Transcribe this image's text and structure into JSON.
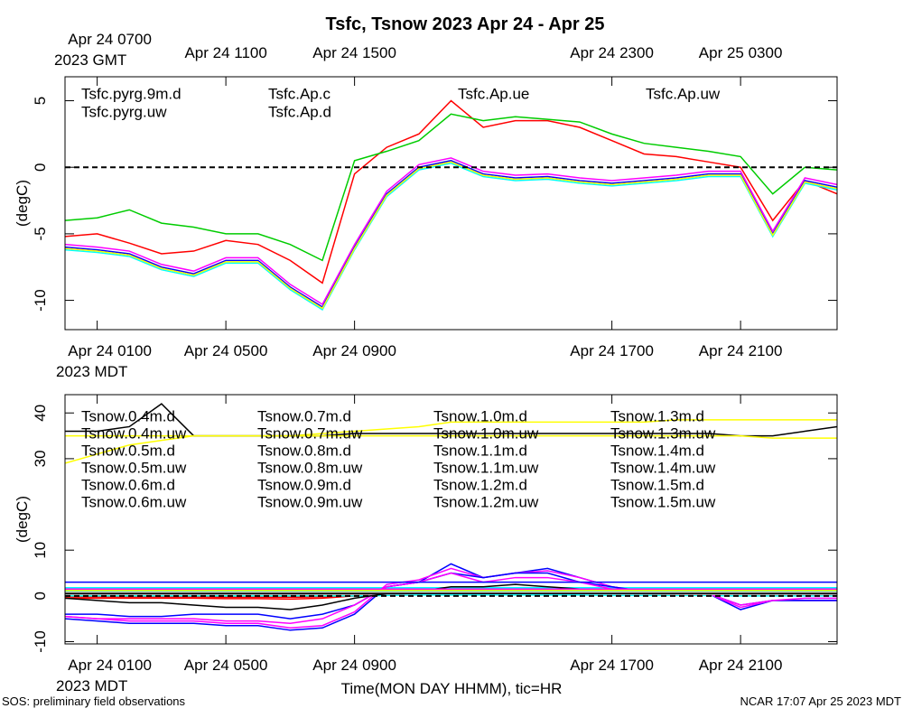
{
  "chart_data": [
    {
      "type": "line",
      "title": "Tsfc, Tsnow 2023 Apr 24 - Apr 25",
      "ylabel": "(degC)",
      "x_note": "2023 MDT",
      "x2_note": "2023 GMT",
      "x": [
        0,
        1,
        2,
        3,
        4,
        5,
        6,
        7,
        8,
        9,
        10,
        11,
        12,
        13,
        14,
        15,
        16,
        17,
        18,
        19,
        20,
        21,
        22,
        23,
        24
      ],
      "xlim": [
        0,
        24
      ],
      "xticks": [
        {
          "value": 1,
          "label": "Apr 24 0100"
        },
        {
          "value": 5,
          "label": "Apr 24 0500"
        },
        {
          "value": 9,
          "label": "Apr 24 0900"
        },
        {
          "value": 17,
          "label": "Apr 24 1700"
        },
        {
          "value": 21,
          "label": "Apr 24 2100"
        }
      ],
      "x2ticks": [
        {
          "value": 1,
          "label": "Apr 24 0700"
        },
        {
          "value": 5,
          "label": "Apr 24 1100"
        },
        {
          "value": 9,
          "label": "Apr 24 1500"
        },
        {
          "value": 17,
          "label": "Apr 24 2300"
        },
        {
          "value": 21,
          "label": "Apr 25 0300"
        }
      ],
      "ylim": [
        -12.2,
        6.8
      ],
      "yticks": [
        -10,
        -5,
        0,
        5
      ],
      "hline": 0,
      "series": [
        {
          "name": "Tsfc.pyrg.9m.d",
          "color": "#ff0000",
          "values": [
            -5.2,
            -5,
            -5.7,
            -6.5,
            -6.3,
            -5.5,
            -5.8,
            -7,
            -8.7,
            -0.5,
            1.5,
            2.5,
            5,
            3,
            3.5,
            3.5,
            3,
            2,
            1,
            0.8,
            0.4,
            0,
            -4,
            -1,
            -2
          ]
        },
        {
          "name": "Tsfc.pyrg.uw",
          "color": "#00cc00",
          "values": [
            -4,
            -3.8,
            -3.2,
            -4.2,
            -4.5,
            -5,
            -5,
            -5.8,
            -7,
            0.5,
            1.2,
            2,
            4,
            3.5,
            3.8,
            3.6,
            3.4,
            2.5,
            1.8,
            1.5,
            1.2,
            0.8,
            -2,
            0,
            -0.2
          ]
        },
        {
          "name": "Tsfc.Ap.c",
          "color": "#0000ff",
          "values": [
            -6,
            -6.2,
            -6.5,
            -7.5,
            -8,
            -7,
            -7,
            -9,
            -10.5,
            -6,
            -2,
            0,
            0.5,
            -0.5,
            -0.8,
            -0.7,
            -1,
            -1.2,
            -1,
            -0.8,
            -0.5,
            -0.5,
            -5,
            -1,
            -1.5
          ]
        },
        {
          "name": "Tsfc.Ap.d",
          "color": "#00ffff",
          "values": [
            -6.2,
            -6.4,
            -6.7,
            -7.7,
            -8.2,
            -7.2,
            -7.2,
            -9.2,
            -10.7,
            -6.2,
            -2.2,
            -0.2,
            0.3,
            -0.7,
            -1,
            -0.9,
            -1.2,
            -1.4,
            -1.2,
            -1,
            -0.7,
            -0.7,
            -5.2,
            -1.2,
            -1.7
          ]
        },
        {
          "name": "Tsfc.Ap.ue",
          "color": "#ff00ff",
          "values": [
            -5.8,
            -6,
            -6.3,
            -7.3,
            -7.8,
            -6.8,
            -6.8,
            -8.8,
            -10.3,
            -5.8,
            -1.8,
            0.2,
            0.7,
            -0.3,
            -0.6,
            -0.5,
            -0.8,
            -1,
            -0.8,
            -0.6,
            -0.3,
            -0.3,
            -4.8,
            -0.8,
            -1.3
          ]
        },
        {
          "name": "Tsfc.Ap.uw",
          "color": "#ffff00",
          "values": [
            -6.1,
            -6.3,
            -6.6,
            -7.6,
            -8.1,
            -7.1,
            -7.1,
            -9.1,
            -10.6,
            -6.1,
            -2.1,
            -0.1,
            0.4,
            -0.6,
            -0.9,
            -0.8,
            -1.1,
            -1.3,
            -1.1,
            -0.9,
            -0.6,
            -0.6,
            -5.1,
            -1.1,
            -1.6
          ]
        }
      ]
    },
    {
      "type": "line",
      "ylabel": "(degC)",
      "x_note": "2023 MDT",
      "xlabel": "Time(MON DAY HHMM), tic=HR",
      "x": [
        0,
        1,
        2,
        3,
        4,
        5,
        6,
        7,
        8,
        9,
        10,
        11,
        12,
        13,
        14,
        15,
        16,
        17,
        18,
        19,
        20,
        21,
        22,
        23,
        24
      ],
      "xlim": [
        0,
        24
      ],
      "xticks": [
        {
          "value": 1,
          "label": "Apr 24 0100"
        },
        {
          "value": 5,
          "label": "Apr 24 0500"
        },
        {
          "value": 9,
          "label": "Apr 24 0900"
        },
        {
          "value": 17,
          "label": "Apr 24 1700"
        },
        {
          "value": 21,
          "label": "Apr 24 2100"
        }
      ],
      "ylim": [
        -10.5,
        44
      ],
      "yticks": [
        -10,
        0,
        10,
        30,
        40
      ],
      "hline": 0,
      "series": [
        {
          "name": "Tsnow.0.4m.d",
          "color": "#ff0000",
          "values": [
            -0.5,
            -0.5,
            -0.5,
            -0.5,
            -0.5,
            -0.6,
            -0.6,
            -0.7,
            -0.5,
            0,
            0.5,
            1,
            1,
            1.5,
            1.5,
            1.2,
            1,
            0.8,
            0.6,
            0.5,
            0.5,
            0.3,
            0.2,
            0.2,
            0.2
          ]
        },
        {
          "name": "Tsnow.0.4m.uw",
          "color": "#00cc00",
          "values": [
            0,
            0,
            0,
            0,
            0,
            0,
            0,
            0,
            0,
            0.2,
            0.4,
            0.6,
            0.8,
            0.8,
            0.8,
            0.7,
            0.6,
            0.5,
            0.4,
            0.3,
            0.3,
            0.2,
            0.2,
            0.2,
            0.2
          ]
        },
        {
          "name": "Tsnow.0.5m.d",
          "color": "#0000ff",
          "values": [
            -5,
            -5.5,
            -6,
            -6,
            -6,
            -6.5,
            -6.5,
            -7.5,
            -7,
            -4,
            2,
            3,
            7,
            4,
            5,
            6,
            4,
            2,
            1,
            0.5,
            0.5,
            -3,
            -1,
            -1,
            -1
          ]
        },
        {
          "name": "Tsnow.0.5m.uw",
          "color": "#00ffff",
          "values": [
            1.8,
            1.8,
            1.8,
            1.8,
            1.8,
            1.8,
            1.8,
            1.8,
            1.8,
            1.8,
            1.8,
            1.8,
            1.8,
            1.8,
            1.8,
            1.8,
            1.8,
            1.8,
            1.8,
            1.8,
            1.8,
            1.8,
            1.8,
            1.8,
            1.8
          ]
        },
        {
          "name": "Tsnow.0.6m.d",
          "color": "#ff00ff",
          "values": [
            -4.5,
            -5,
            -5.5,
            -5.5,
            -5.5,
            -6,
            -6,
            -7,
            -6.5,
            -3.5,
            2.5,
            3.5,
            6,
            4,
            5,
            5.5,
            4,
            2,
            1,
            0.5,
            0.5,
            -2.5,
            -1,
            -1,
            -1
          ]
        },
        {
          "name": "Tsnow.0.6m.uw",
          "color": "#ffff00",
          "values": [
            29,
            31,
            33,
            34,
            35,
            35,
            35,
            35,
            35.5,
            36,
            36.5,
            37,
            38,
            38,
            38,
            38,
            38,
            38,
            38,
            38.5,
            38.5,
            38.5,
            38.5,
            38.5,
            38.5
          ]
        },
        {
          "name": "Tsnow.0.7m.d",
          "color": "#c0c0c0",
          "values": [
            0.5,
            0.5,
            0.5,
            0.5,
            0.5,
            0.5,
            0.5,
            0.5,
            0.5,
            0.5,
            0.6,
            0.7,
            0.8,
            0.8,
            0.8,
            0.7,
            0.6,
            0.6,
            0.5,
            0.5,
            0.5,
            0.5,
            0.5,
            0.5,
            0.5
          ]
        },
        {
          "name": "Tsnow.0.7m.uw",
          "color": "#000000",
          "values": [
            36,
            36,
            37,
            42,
            35,
            35,
            35,
            35,
            35,
            35.5,
            35.5,
            35.5,
            35.5,
            35.5,
            35.5,
            35.5,
            35.5,
            35.5,
            35.5,
            35.5,
            35.5,
            35,
            35,
            36,
            37
          ]
        },
        {
          "name": "Tsnow.0.8m.d",
          "color": "#ff0000",
          "values": [
            -0.2,
            -0.2,
            -0.2,
            -0.2,
            -0.2,
            -0.3,
            -0.3,
            -0.3,
            -0.2,
            0,
            0.3,
            0.6,
            0.8,
            1,
            1,
            0.9,
            0.8,
            0.6,
            0.5,
            0.4,
            0.4,
            0.3,
            0.2,
            0.2,
            0.2
          ]
        },
        {
          "name": "Tsnow.0.8m.uw",
          "color": "#00cc00",
          "values": [
            0.5,
            0.5,
            0.5,
            0.5,
            0.5,
            0.5,
            0.5,
            0.5,
            0.5,
            0.5,
            0.6,
            0.7,
            0.8,
            0.8,
            0.8,
            0.7,
            0.7,
            0.6,
            0.6,
            0.5,
            0.5,
            0.5,
            0.5,
            0.5,
            0.5
          ]
        },
        {
          "name": "Tsnow.0.9m.d",
          "color": "#0000ff",
          "values": [
            -4,
            -4,
            -4.5,
            -4.5,
            -4,
            -4,
            -4,
            -5,
            -4,
            -2,
            2,
            3,
            5,
            4,
            5,
            5,
            3,
            2,
            1,
            0.5,
            0.5,
            -2,
            -1,
            -1,
            -1
          ]
        },
        {
          "name": "Tsnow.0.9m.uw",
          "color": "#00ffff",
          "values": [
            0,
            0,
            0,
            0,
            0,
            0,
            0,
            0,
            0,
            0,
            0.1,
            0.2,
            0.2,
            0.2,
            0.2,
            0.2,
            0.2,
            0.1,
            0.1,
            0.1,
            0.1,
            0,
            0,
            0,
            0
          ]
        },
        {
          "name": "Tsnow.1.0m.d",
          "color": "#ff00ff",
          "values": [
            -4.5,
            -5,
            -5,
            -5,
            -5,
            -5.5,
            -5.5,
            -6,
            -5,
            -2,
            2,
            3,
            5,
            3,
            4,
            4,
            3,
            1.5,
            1,
            0.5,
            0.5,
            -2,
            -1,
            -0.5,
            -0.5
          ]
        },
        {
          "name": "Tsnow.1.0m.uw",
          "color": "#ffff00",
          "values": [
            35,
            35,
            35,
            35,
            35,
            35,
            35,
            35,
            35,
            35,
            35,
            35,
            35,
            35,
            35,
            35,
            35,
            35,
            35,
            35,
            35,
            35,
            34.5,
            34.5,
            34.5
          ]
        },
        {
          "name": "Tsnow.1.1m.d",
          "color": "#c0c0c0",
          "values": [
            0.3,
            0.3,
            0.3,
            0.3,
            0.3,
            0.3,
            0.3,
            0.3,
            0.3,
            0.3,
            0.4,
            0.5,
            0.6,
            0.6,
            0.6,
            0.5,
            0.5,
            0.4,
            0.4,
            0.3,
            0.3,
            0.3,
            0.3,
            0.3,
            0.3
          ]
        },
        {
          "name": "Tsnow.1.1m.uw",
          "color": "#000000",
          "values": [
            -0.5,
            -1,
            -1.5,
            -1.5,
            -2,
            -2.5,
            -2.5,
            -3,
            -2,
            -0.5,
            0.5,
            1,
            2,
            2,
            2.5,
            2,
            1.5,
            1,
            0.5,
            0.5,
            0.5,
            0.5,
            0.5,
            0.5,
            0.5
          ]
        },
        {
          "name": "Tsnow.1.2m.d",
          "color": "#ff0000",
          "values": [
            0.8,
            0.8,
            0.8,
            0.8,
            0.8,
            0.8,
            0.8,
            0.8,
            0.8,
            0.8,
            0.9,
            1,
            1.1,
            1.1,
            1.1,
            1,
            1,
            0.9,
            0.9,
            0.8,
            0.8,
            0.8,
            0.8,
            0.8,
            0.8
          ]
        },
        {
          "name": "Tsnow.1.2m.uw",
          "color": "#00cc00",
          "values": [
            0.5,
            0.5,
            0.5,
            0.5,
            0.5,
            0.5,
            0.5,
            0.5,
            0.5,
            0.5,
            0.5,
            0.6,
            0.6,
            0.6,
            0.6,
            0.6,
            0.6,
            0.5,
            0.5,
            0.5,
            0.5,
            0.5,
            0.5,
            0.5,
            0.5
          ]
        },
        {
          "name": "Tsnow.1.3m.d",
          "color": "#0000ff",
          "values": [
            3,
            3,
            3,
            3,
            3,
            3,
            3,
            3,
            3,
            3,
            3,
            3,
            3,
            3,
            3,
            3,
            3,
            3,
            3,
            3,
            3,
            3,
            3,
            3,
            3
          ]
        },
        {
          "name": "Tsnow.1.3m.uw",
          "color": "#00ffff",
          "values": [
            1,
            1,
            1,
            1,
            1,
            1,
            1,
            1,
            1,
            1,
            1,
            1,
            1,
            1,
            1,
            1,
            1,
            1,
            1,
            1,
            1,
            1,
            1,
            1,
            1
          ]
        },
        {
          "name": "Tsnow.1.4m.d",
          "color": "#ff00ff",
          "values": [
            1.5,
            1.5,
            1.5,
            1.5,
            1.5,
            1.5,
            1.5,
            1.5,
            1.5,
            1.5,
            1.5,
            1.5,
            1.5,
            1.5,
            1.5,
            1.5,
            1.5,
            1.5,
            1.5,
            1.5,
            1.5,
            1.5,
            1.5,
            1.5,
            1.5
          ]
        },
        {
          "name": "Tsnow.1.4m.uw",
          "color": "#ffff00",
          "values": [
            1.2,
            1.2,
            1.2,
            1.2,
            1.2,
            1.2,
            1.2,
            1.2,
            1.2,
            1.2,
            1.2,
            1.2,
            1.2,
            1.2,
            1.2,
            1.2,
            1.2,
            1.2,
            1.2,
            1.2,
            1.2,
            1.2,
            1.2,
            1.2,
            1.2
          ]
        },
        {
          "name": "Tsnow.1.5m.d",
          "color": "#c0c0c0",
          "values": [
            0.8,
            0.8,
            0.8,
            0.8,
            0.8,
            0.8,
            0.8,
            0.8,
            0.8,
            0.8,
            0.8,
            0.8,
            0.8,
            0.8,
            0.8,
            0.8,
            0.8,
            0.8,
            0.8,
            0.8,
            0.8,
            0.8,
            0.8,
            0.8,
            0.8
          ]
        },
        {
          "name": "Tsnow.1.5m.uw",
          "color": "#000000",
          "values": [
            0.5,
            0.5,
            0.5,
            0.5,
            0.5,
            0.5,
            0.5,
            0.5,
            0.5,
            0.5,
            0.5,
            0.5,
            0.5,
            0.5,
            0.5,
            0.5,
            0.5,
            0.5,
            0.5,
            0.5,
            0.5,
            0.5,
            0.5,
            0.5,
            0.5
          ]
        }
      ]
    }
  ],
  "footer": {
    "left": "SOS: preliminary field observations",
    "right": "NCAR 17:07 Apr 25 2023 MDT"
  }
}
